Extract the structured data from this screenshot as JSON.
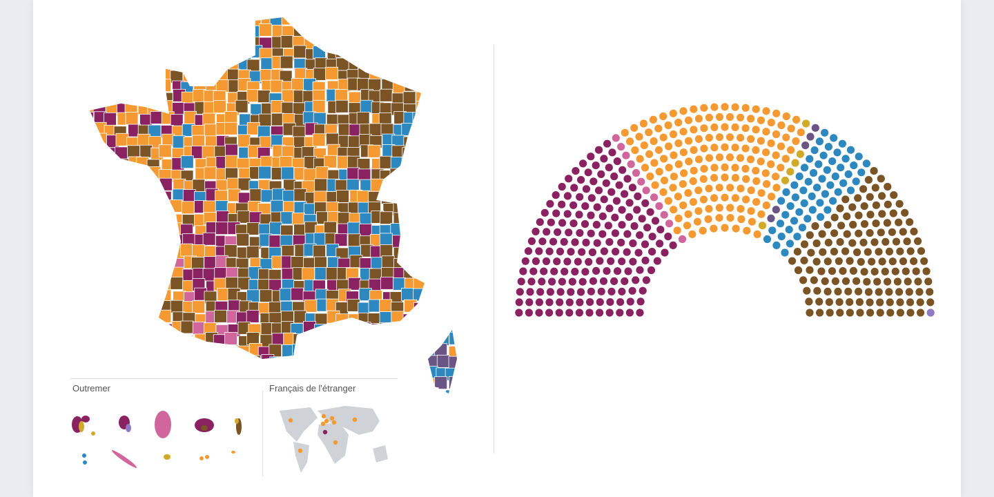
{
  "colors": {
    "left": "#8a2262",
    "misc_left": "#d0669b",
    "centre": "#f59a32",
    "misc_centre": "#d2aa2a",
    "regionalist": "#6a5585",
    "right": "#2e88c0",
    "far_right": "#7b5426",
    "other": "#8f7ac2",
    "territory_bg": "#cfd2d6"
  },
  "overseas": {
    "title": "Outremer"
  },
  "abroad": {
    "title": "Français de l'étranger"
  },
  "chart_data": {
    "type": "hemicycle",
    "total_seats": 577,
    "rows": 13,
    "groups": [
      {
        "color": "#8a2262",
        "seats": 182
      },
      {
        "color": "#d0669b",
        "seats": 12
      },
      {
        "color": "#f59a32",
        "seats": 168
      },
      {
        "color": "#d2aa2a",
        "seats": 6
      },
      {
        "color": "#6a5585",
        "seats": 5
      },
      {
        "color": "#2e88c0",
        "seats": 60
      },
      {
        "color": "#7b5426",
        "seats": 143
      },
      {
        "color": "#8f7ac2",
        "seats": 1
      }
    ]
  }
}
